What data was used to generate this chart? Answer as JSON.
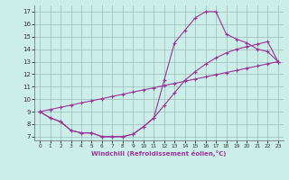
{
  "xlabel": "Windchill (Refroidissement éolien,°C)",
  "background_color": "#cceee8",
  "grid_color": "#9bbbb8",
  "line_color": "#993399",
  "xlim": [
    -0.5,
    23.5
  ],
  "ylim": [
    6.7,
    17.5
  ],
  "xticks": [
    0,
    1,
    2,
    3,
    4,
    5,
    6,
    7,
    8,
    9,
    10,
    11,
    12,
    13,
    14,
    15,
    16,
    17,
    18,
    19,
    20,
    21,
    22,
    23
  ],
  "yticks": [
    7,
    8,
    9,
    10,
    11,
    12,
    13,
    14,
    15,
    16,
    17
  ],
  "curve1_x": [
    0,
    1,
    2,
    3,
    4,
    5,
    6,
    7,
    8,
    9,
    10,
    11,
    12,
    13,
    14,
    15,
    16,
    17,
    18,
    19,
    20,
    21,
    22,
    23
  ],
  "curve1_y": [
    9.0,
    8.5,
    8.2,
    7.5,
    7.3,
    7.3,
    7.0,
    7.0,
    7.0,
    7.2,
    7.8,
    8.5,
    11.5,
    14.5,
    15.5,
    16.5,
    17.0,
    17.0,
    15.2,
    14.8,
    14.5,
    14.0,
    13.8,
    13.0
  ],
  "curve2_x": [
    0,
    1,
    2,
    3,
    4,
    5,
    6,
    7,
    8,
    9,
    10,
    11,
    12,
    13,
    14,
    15,
    16,
    17,
    18,
    19,
    20,
    21,
    22,
    23
  ],
  "curve2_y": [
    9.0,
    8.5,
    8.2,
    7.5,
    7.3,
    7.3,
    7.0,
    7.0,
    7.0,
    7.2,
    7.8,
    8.5,
    9.5,
    10.5,
    11.5,
    12.2,
    12.8,
    13.3,
    13.7,
    14.0,
    14.2,
    14.4,
    14.6,
    13.0
  ],
  "curve3_x": [
    0,
    1,
    2,
    3,
    4,
    5,
    6,
    7,
    8,
    9,
    10,
    11,
    12,
    13,
    14,
    15,
    16,
    17,
    18,
    19,
    20,
    21,
    22,
    23
  ],
  "curve3_y": [
    9.0,
    9.17,
    9.35,
    9.52,
    9.7,
    9.87,
    10.04,
    10.22,
    10.39,
    10.57,
    10.74,
    10.91,
    11.09,
    11.26,
    11.43,
    11.61,
    11.78,
    11.96,
    12.13,
    12.3,
    12.48,
    12.65,
    12.83,
    13.0
  ]
}
